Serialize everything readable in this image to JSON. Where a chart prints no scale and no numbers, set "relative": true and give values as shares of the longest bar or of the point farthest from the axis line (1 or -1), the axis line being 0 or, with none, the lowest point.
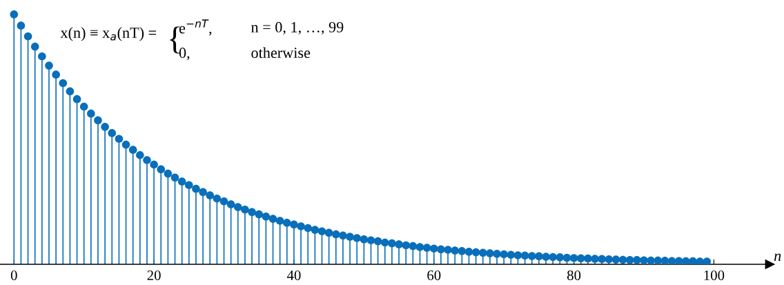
{
  "chart_data": {
    "type": "lollipop",
    "relative": true,
    "color": "#0a6fba",
    "marker": "circle",
    "x": [
      0,
      1,
      2,
      3,
      4,
      5,
      6,
      7,
      8,
      9,
      10,
      11,
      12,
      13,
      14,
      15,
      16,
      17,
      18,
      19,
      20,
      21,
      22,
      23,
      24,
      25,
      26,
      27,
      28,
      29,
      30,
      31,
      32,
      33,
      34,
      35,
      36,
      37,
      38,
      39,
      40,
      41,
      42,
      43,
      44,
      45,
      46,
      47,
      48,
      49,
      50,
      51,
      52,
      53,
      54,
      55,
      56,
      57,
      58,
      59,
      60,
      61,
      62,
      63,
      64,
      65,
      66,
      67,
      68,
      69,
      70,
      71,
      72,
      73,
      74,
      75,
      76,
      77,
      78,
      79,
      80,
      81,
      82,
      83,
      84,
      85,
      86,
      87,
      88,
      89,
      90,
      91,
      92,
      93,
      94,
      95,
      96,
      97,
      98,
      99
    ],
    "values": [
      1.0,
      0.955,
      0.912,
      0.871,
      0.832,
      0.795,
      0.759,
      0.725,
      0.692,
      0.661,
      0.631,
      0.603,
      0.576,
      0.55,
      0.525,
      0.502,
      0.479,
      0.458,
      0.437,
      0.417,
      0.399,
      0.38,
      0.363,
      0.347,
      0.331,
      0.317,
      0.302,
      0.289,
      0.276,
      0.263,
      0.252,
      0.24,
      0.229,
      0.219,
      0.209,
      0.2,
      0.191,
      0.182,
      0.174,
      0.166,
      0.159,
      0.152,
      0.145,
      0.138,
      0.132,
      0.126,
      0.12,
      0.115,
      0.11,
      0.105,
      0.1,
      0.096,
      0.092,
      0.087,
      0.084,
      0.08,
      0.076,
      0.073,
      0.069,
      0.066,
      0.063,
      0.06,
      0.058,
      0.055,
      0.053,
      0.05,
      0.048,
      0.046,
      0.044,
      0.042,
      0.04,
      0.038,
      0.036,
      0.035,
      0.033,
      0.032,
      0.03,
      0.029,
      0.028,
      0.026,
      0.025,
      0.024,
      0.023,
      0.022,
      0.021,
      0.02,
      0.019,
      0.018,
      0.017,
      0.017,
      0.016,
      0.015,
      0.015,
      0.014,
      0.013,
      0.013,
      0.012,
      0.012,
      0.011,
      0.011
    ],
    "xlim": [
      -2,
      108
    ],
    "xticks": [
      0,
      20,
      40,
      60,
      80,
      100
    ],
    "xlabel": "n",
    "tick_labels": "x",
    "annotations": [
      "x(n) ≡ x$_{a}$(nT) =",
      "{",
      "e$^{−nT}$,",
      "0,",
      "n = 0, 1, …, 99",
      "otherwise"
    ]
  }
}
